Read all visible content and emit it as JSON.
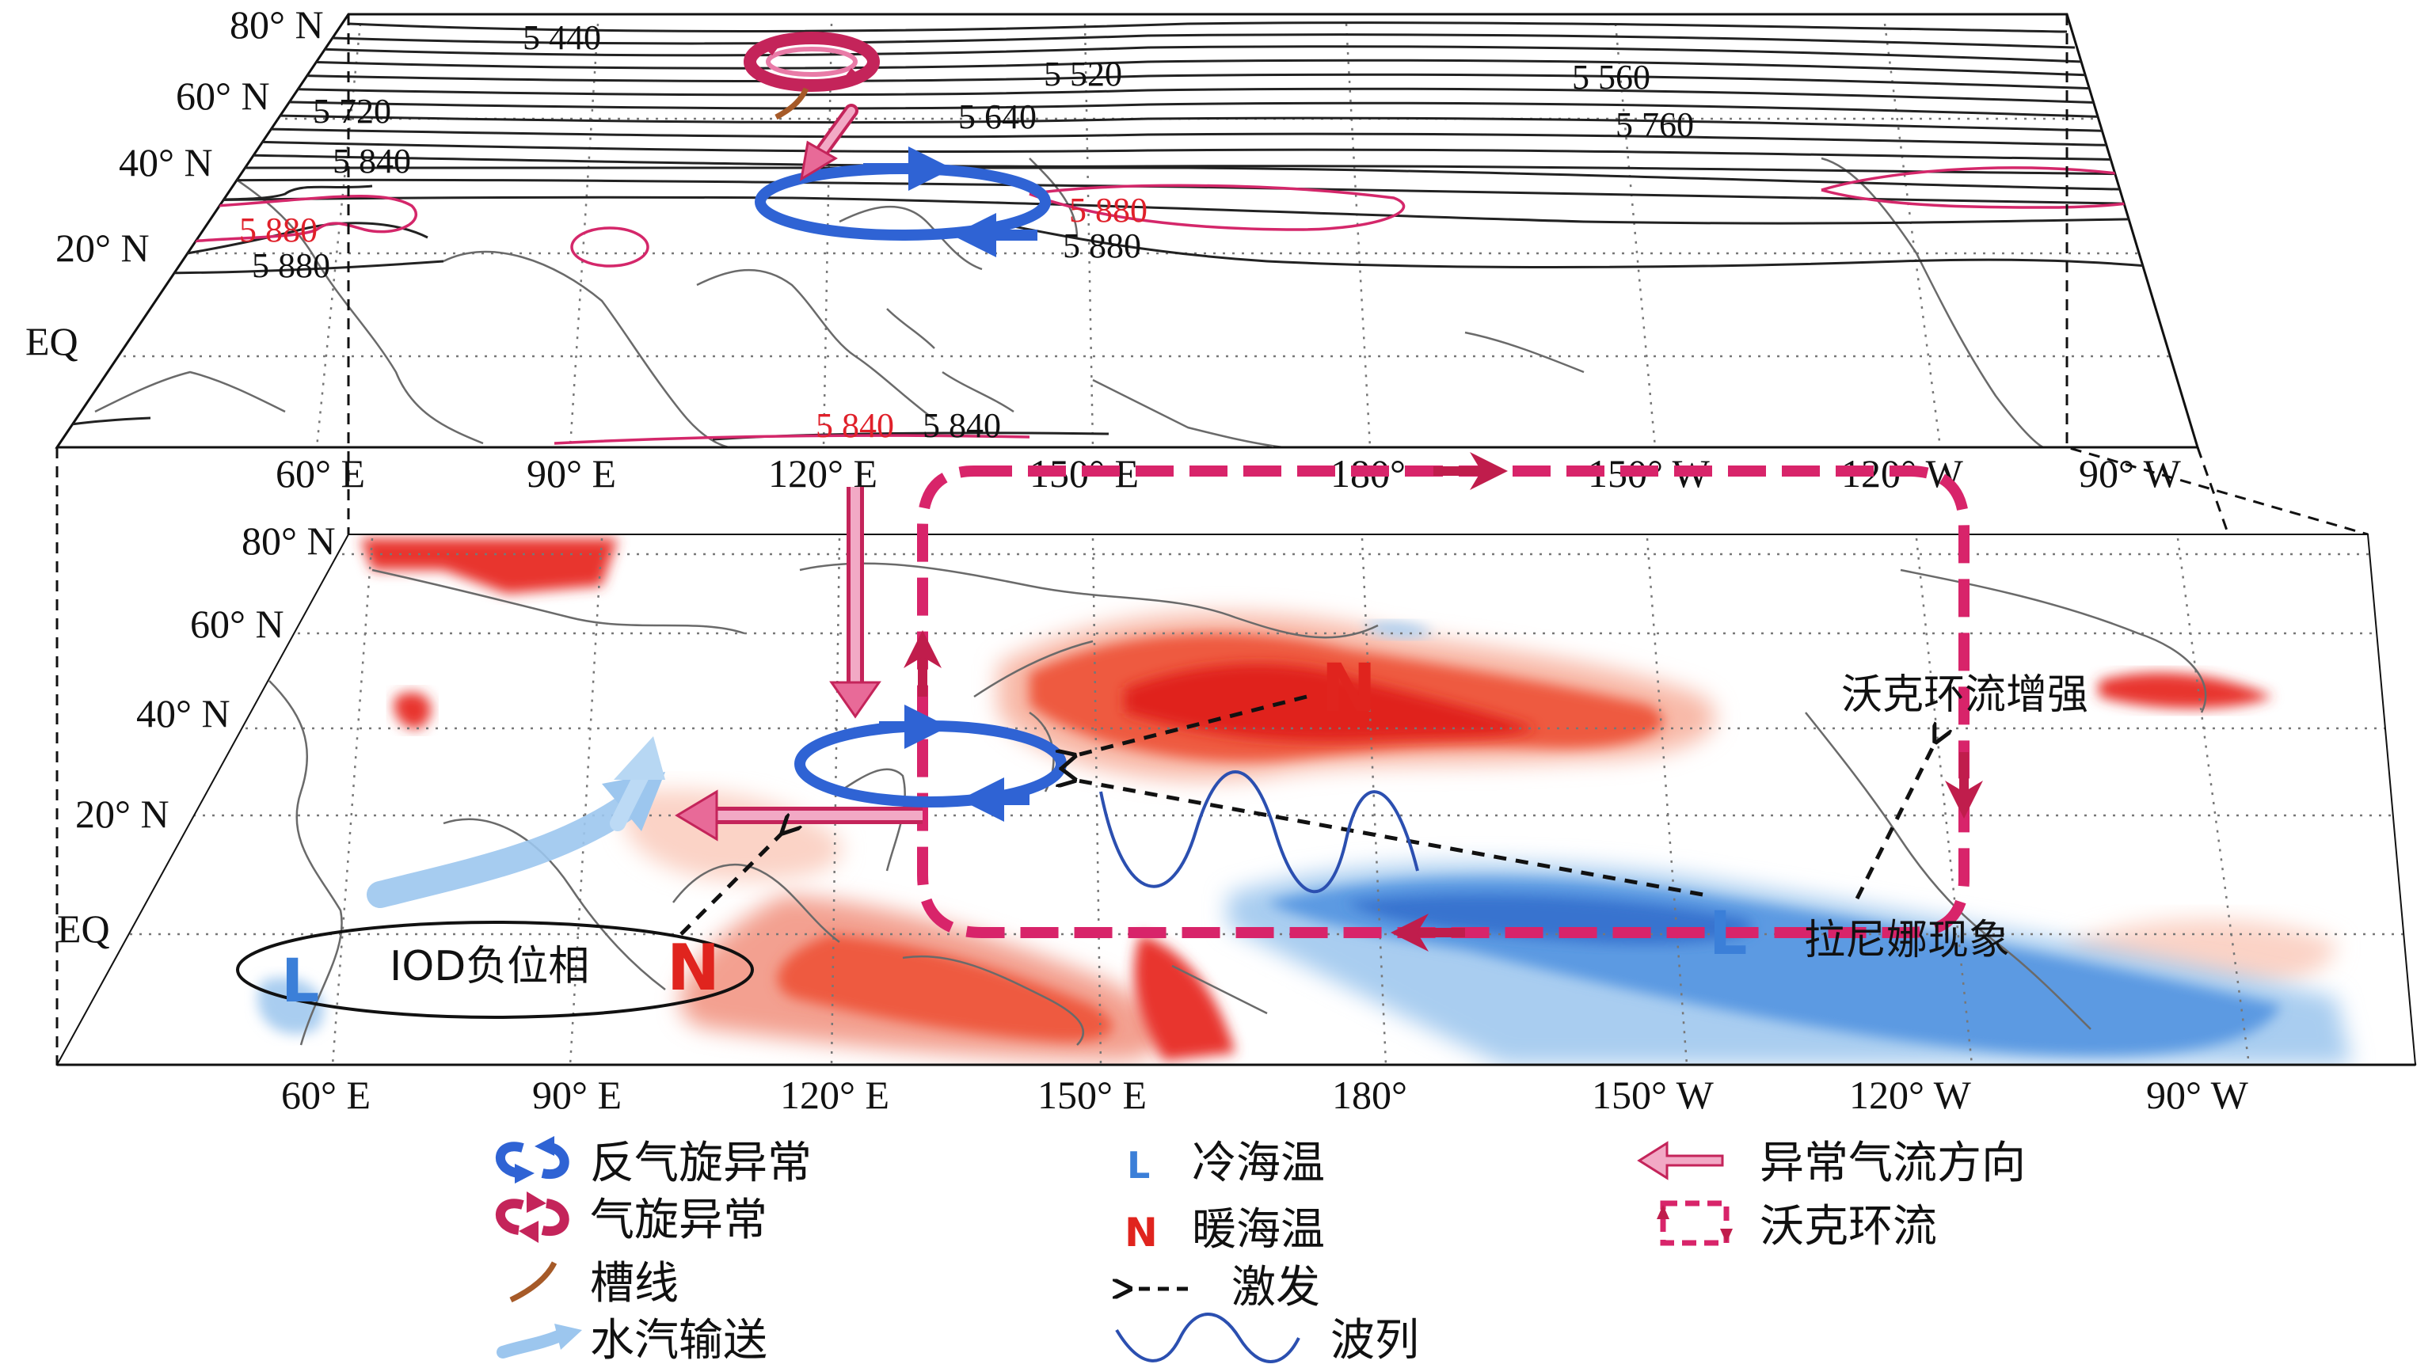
{
  "upper_panel": {
    "lat_labels": [
      "80° N",
      "60° N",
      "40° N",
      "20° N",
      "EQ"
    ],
    "lon_labels": [
      "60° E",
      "90° E",
      "120° E",
      "150° E",
      "180°",
      "150° W",
      "120° W",
      "90° W"
    ],
    "contour_labels": {
      "c5440": "5 440",
      "c5520": "5 520",
      "c5560": "5 560",
      "c5640": "5 640",
      "c5720": "5 720",
      "c5760": "5 760",
      "c5840a": "5 840",
      "c5880a": "5 880",
      "c5880red_west": "5 880",
      "c5880red_east": "5 880",
      "c5880b": "5 880",
      "c5840red_south": "5 840",
      "c5840_south": "5 840"
    }
  },
  "lower_panel": {
    "lat_labels": [
      "80° N",
      "60° N",
      "40° N",
      "20° N",
      "EQ"
    ],
    "lon_labels": [
      "60° E",
      "90° E",
      "120° E",
      "150° E",
      "180°",
      "150° W",
      "120° W",
      "90° W"
    ],
    "annotations": {
      "iod": "IOD负位相",
      "walker_enhanced": "沃克环流增强",
      "la_nina": "拉尼娜现象",
      "warm_symbol": "N",
      "cold_symbol": "L"
    }
  },
  "legend": {
    "anticyclone": "反气旋异常",
    "cyclone": "气旋异常",
    "trough": "槽线",
    "moisture": "水汽输送",
    "cold_sst": "冷海温",
    "warm_sst": "暖海温",
    "excite": "激发",
    "wave_train": "波列",
    "anomalous_flow": "异常气流方向",
    "walker": "沃克环流",
    "cold_symbol": "L",
    "warm_symbol": "N"
  },
  "colors": {
    "warm_sst": "#e8342e",
    "cold_sst": "#3b7fd8",
    "anticyclone": "#2f63d4",
    "cyclone": "#c4245a",
    "anomalous_flow": "#e86a98",
    "walker": "#d8246a",
    "moisture": "#9cc6ee",
    "trough": "#a65a28",
    "red_contour": "#d4276a"
  }
}
